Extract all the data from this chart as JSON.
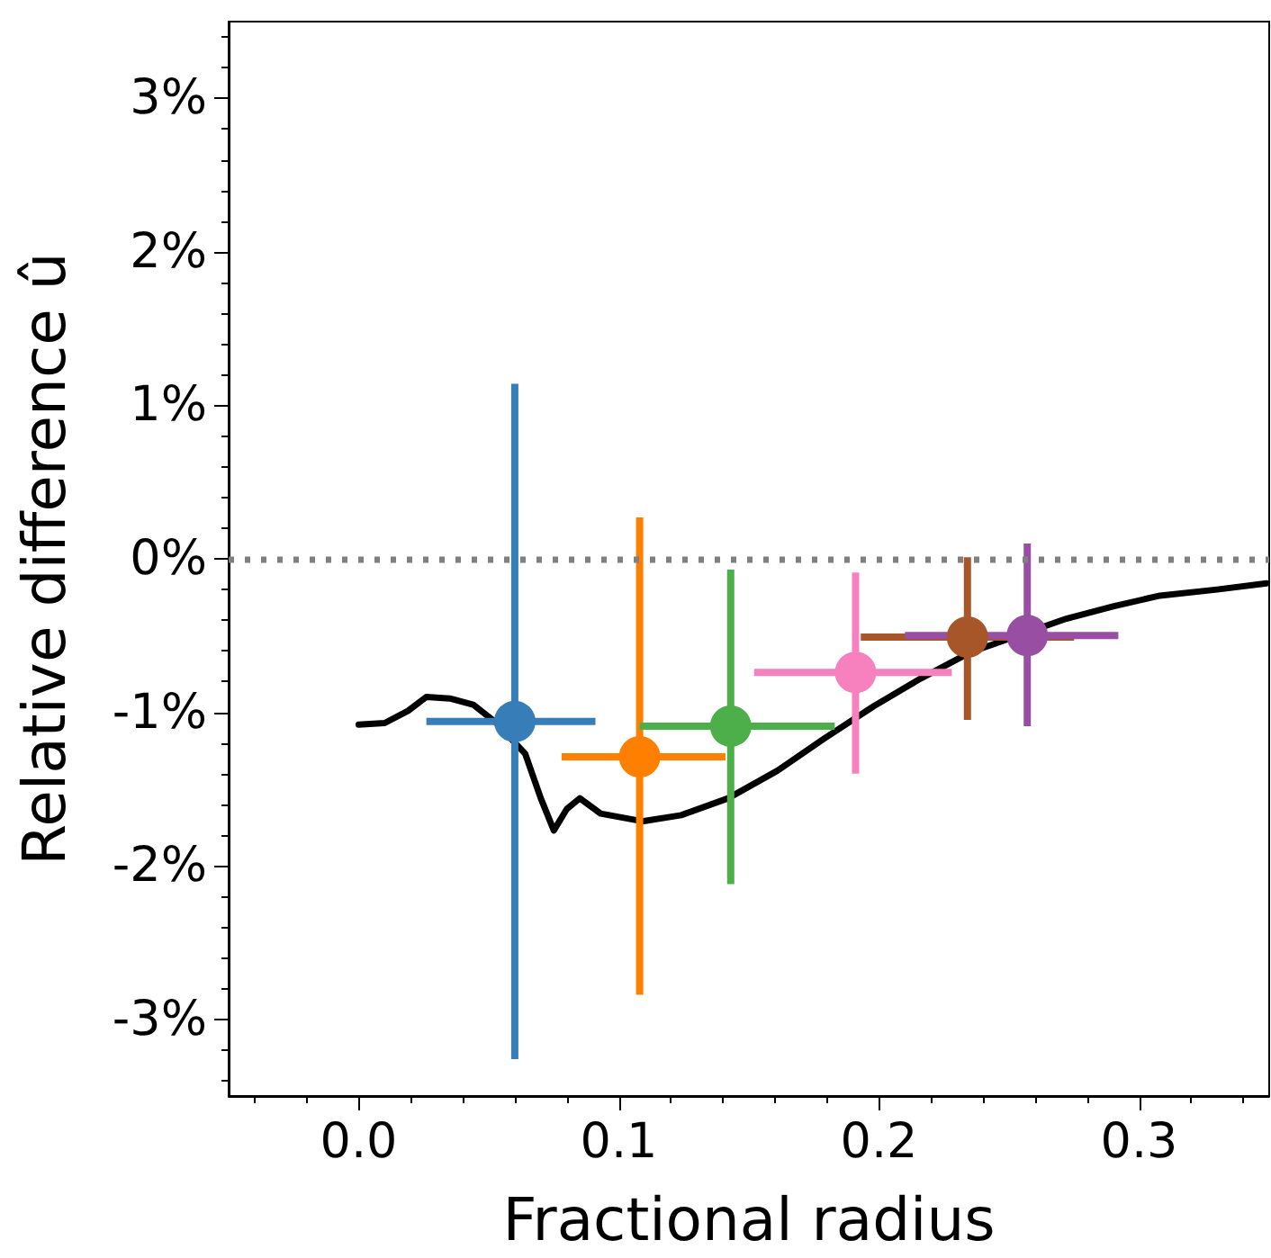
{
  "chart_data": {
    "type": "scatter",
    "xlabel": "Fractional radius",
    "ylabel": "Relative difference û",
    "xlim": [
      -0.05,
      0.35
    ],
    "xticks": [
      {
        "value": -0.04,
        "label": null
      },
      {
        "value": -0.02,
        "label": null
      },
      {
        "value": 0,
        "label": "0.0"
      },
      {
        "value": 0.02,
        "label": null
      },
      {
        "value": 0.04,
        "label": null
      },
      {
        "value": 0.06,
        "label": null
      },
      {
        "value": 0.08,
        "label": null
      },
      0.1,
      {
        "value": 0.12,
        "label": null
      },
      {
        "value": 0.14,
        "label": null
      },
      {
        "value": 0.16,
        "label": null
      },
      {
        "value": 0.18,
        "label": null
      },
      0.2,
      {
        "value": 0.22,
        "label": null
      },
      {
        "value": 0.24,
        "label": null
      },
      {
        "value": 0.26,
        "label": null
      },
      {
        "value": 0.28,
        "label": null
      },
      0.3,
      {
        "value": 0.32,
        "label": null
      },
      {
        "value": 0.34,
        "label": null
      }
    ],
    "ylim": [
      -3.5,
      3.5
    ],
    "yticks": [
      {
        "value": -3.4,
        "label": null
      },
      {
        "value": -3.2,
        "label": null
      },
      {
        "value": -3,
        "label": "-3%"
      },
      {
        "value": -2.8,
        "label": null
      },
      {
        "value": -2.6,
        "label": null
      },
      {
        "value": -2.4,
        "label": null
      },
      {
        "value": -2.2,
        "label": null
      },
      {
        "value": -2,
        "label": "-2%"
      },
      {
        "value": -1.8,
        "label": null
      },
      {
        "value": -1.6,
        "label": null
      },
      {
        "value": -1.4,
        "label": null
      },
      {
        "value": -1.2,
        "label": null
      },
      {
        "value": -1,
        "label": "-1%"
      },
      {
        "value": -0.8,
        "label": null
      },
      {
        "value": -0.6,
        "label": null
      },
      {
        "value": -0.4,
        "label": null
      },
      {
        "value": -0.2,
        "label": null
      },
      {
        "value": 0,
        "label": "0%"
      },
      {
        "value": 0.2,
        "label": null
      },
      {
        "value": 0.4,
        "label": null
      },
      {
        "value": 0.6,
        "label": null
      },
      {
        "value": 0.8,
        "label": null
      },
      {
        "value": 1,
        "label": "1%"
      },
      {
        "value": 1.2,
        "label": null
      },
      {
        "value": 1.4,
        "label": null
      },
      {
        "value": 1.6,
        "label": null
      },
      {
        "value": 1.8,
        "label": null
      },
      {
        "value": 2,
        "label": "2%"
      },
      {
        "value": 2.2,
        "label": null
      },
      {
        "value": 2.4,
        "label": null
      },
      {
        "value": 2.6,
        "label": null
      },
      {
        "value": 2.8,
        "label": null
      },
      {
        "value": 3,
        "label": "3%"
      },
      {
        "value": 3.2,
        "label": null
      },
      {
        "value": 3.4,
        "label": null
      }
    ],
    "marker": "circle",
    "ref_lines": [
      {
        "axis": "y",
        "value": 0,
        "color": "#808080",
        "line_style": "dotted"
      }
    ],
    "series": [
      {
        "type": "line",
        "color": "#000000",
        "marker": "none",
        "line_style": "solid",
        "x": [
          0.0,
          0.01,
          0.019,
          0.026,
          0.035,
          0.044,
          0.053,
          0.064,
          0.07,
          0.075,
          0.08,
          0.085,
          0.093,
          0.109,
          0.124,
          0.142,
          0.161,
          0.179,
          0.198,
          0.216,
          0.235,
          0.272,
          0.29,
          0.308,
          0.33,
          0.349
        ],
        "values": [
          -1.08,
          -1.07,
          -0.99,
          -0.9,
          -0.91,
          -0.95,
          -1.07,
          -1.27,
          -1.56,
          -1.77,
          -1.63,
          -1.56,
          -1.66,
          -1.71,
          -1.67,
          -1.56,
          -1.38,
          -1.17,
          -0.96,
          -0.78,
          -0.61,
          -0.39,
          -0.31,
          -0.24,
          -0.2,
          -0.16
        ]
      },
      {
        "color": "#377eb8",
        "x": [
          0.06
        ],
        "values": [
          -1.06
        ],
        "errors": [
          [
            -3.26,
            1.14
          ]
        ],
        "xerrors": [
          [
            0.026,
            0.091
          ]
        ]
      },
      {
        "color": "#ff7f00",
        "x": [
          0.108
        ],
        "values": [
          -1.29
        ],
        "errors": [
          [
            -2.84,
            0.27
          ]
        ],
        "xerrors": [
          [
            0.078,
            0.141
          ]
        ]
      },
      {
        "color": "#4daf4a",
        "x": [
          0.143
        ],
        "values": [
          -1.09
        ],
        "errors": [
          [
            -2.12,
            -0.07
          ]
        ],
        "xerrors": [
          [
            0.108,
            0.183
          ]
        ]
      },
      {
        "color": "#f781bf",
        "x": [
          0.191
        ],
        "values": [
          -0.74
        ],
        "errors": [
          [
            -1.4,
            -0.09
          ]
        ],
        "xerrors": [
          [
            0.152,
            0.228
          ]
        ]
      },
      {
        "color": "#a65628",
        "x": [
          0.234
        ],
        "values": [
          -0.51
        ],
        "errors": [
          [
            -1.05,
            0.01
          ]
        ],
        "xerrors": [
          [
            0.193,
            0.275
          ]
        ]
      },
      {
        "color": "#984ea3",
        "x": [
          0.257
        ],
        "values": [
          -0.5
        ],
        "errors": [
          [
            -1.09,
            0.1
          ]
        ],
        "xerrors": [
          [
            0.21,
            0.292
          ]
        ]
      }
    ]
  }
}
